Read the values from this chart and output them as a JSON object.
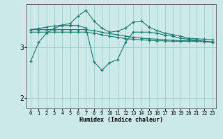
{
  "xlabel": "Humidex (Indice chaleur)",
  "bg_color": "#cdeaea",
  "grid_color": "#a0cccc",
  "line_color": "#1a7a6e",
  "xlim": [
    -0.5,
    23.5
  ],
  "ylim": [
    1.8,
    3.85
  ],
  "yticks": [
    2,
    3
  ],
  "xticks": [
    0,
    1,
    2,
    3,
    4,
    5,
    6,
    7,
    8,
    9,
    10,
    11,
    12,
    13,
    14,
    15,
    16,
    17,
    18,
    19,
    20,
    21,
    22,
    23
  ],
  "series": [
    {
      "x": [
        0,
        1,
        2,
        3,
        4,
        5,
        6,
        7,
        8,
        9,
        10,
        11,
        12,
        13,
        14,
        15,
        16,
        17,
        18,
        19,
        20,
        21,
        22,
        23
      ],
      "y": [
        3.35,
        3.35,
        3.35,
        3.35,
        3.35,
        3.35,
        3.35,
        3.35,
        3.33,
        3.3,
        3.27,
        3.25,
        3.22,
        3.2,
        3.18,
        3.17,
        3.16,
        3.15,
        3.14,
        3.13,
        3.14,
        3.13,
        3.12,
        3.11
      ]
    },
    {
      "x": [
        0,
        1,
        2,
        3,
        4,
        5,
        6,
        7,
        8,
        9,
        10,
        11,
        12,
        13,
        14,
        15,
        16,
        17,
        18,
        19,
        20,
        21,
        22,
        23
      ],
      "y": [
        3.3,
        3.3,
        3.3,
        3.3,
        3.3,
        3.3,
        3.3,
        3.3,
        3.28,
        3.25,
        3.22,
        3.2,
        3.17,
        3.16,
        3.15,
        3.14,
        3.13,
        3.13,
        3.12,
        3.12,
        3.12,
        3.12,
        3.11,
        3.1
      ]
    },
    {
      "x": [
        0,
        1,
        2,
        3,
        4,
        5,
        6,
        7,
        8,
        9,
        10,
        11,
        12,
        13,
        14,
        15,
        16,
        17,
        18,
        19,
        20,
        21,
        22,
        23
      ],
      "y": [
        3.35,
        3.37,
        3.4,
        3.42,
        3.44,
        3.47,
        3.62,
        3.73,
        3.52,
        3.38,
        3.3,
        3.32,
        3.38,
        3.5,
        3.52,
        3.4,
        3.33,
        3.28,
        3.25,
        3.22,
        3.18,
        3.17,
        3.16,
        3.15
      ]
    },
    {
      "x": [
        0,
        1,
        2,
        3,
        4,
        5,
        6,
        7,
        8,
        9,
        10,
        11,
        12,
        13,
        14,
        15,
        16,
        17,
        18,
        19,
        20,
        21,
        22,
        23
      ],
      "y": [
        2.73,
        3.1,
        3.28,
        3.38,
        3.43,
        3.43,
        3.43,
        3.38,
        2.72,
        2.55,
        2.7,
        2.76,
        3.1,
        3.3,
        3.3,
        3.3,
        3.28,
        3.24,
        3.22,
        3.18,
        3.16,
        3.14,
        3.12,
        3.1
      ]
    }
  ]
}
